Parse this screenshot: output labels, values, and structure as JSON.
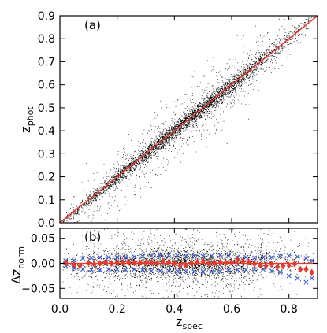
{
  "chart_data": [
    {
      "type": "scatter",
      "panel_label": "(a)",
      "xlabel_main": "z",
      "xlabel_sub": "spec",
      "ylabel_main": "z",
      "ylabel_sub": "phot",
      "xlim": [
        0.0,
        0.9
      ],
      "ylim": [
        0.0,
        0.9
      ],
      "x_ticks": [
        0.0,
        0.2,
        0.4,
        0.6,
        0.8
      ],
      "y_ticks": [
        0.0,
        0.1,
        0.2,
        0.3,
        0.4,
        0.5,
        0.6,
        0.7,
        0.8,
        0.9
      ],
      "y_tick_labels": [
        "0.0",
        "0.1",
        "0.2",
        "0.3",
        "0.4",
        "0.5",
        "0.6",
        "0.7",
        "0.8",
        "0.9"
      ],
      "reference_line": {
        "x": [
          0.0,
          0.9
        ],
        "y": [
          0.0,
          0.9
        ],
        "color": "#e8392a"
      },
      "point_color": "#000000",
      "density_profile": {
        "x": [
          0.03,
          0.1,
          0.2,
          0.3,
          0.4,
          0.5,
          0.6,
          0.7,
          0.8,
          0.88
        ],
        "relative_density": [
          0.15,
          0.35,
          0.6,
          0.8,
          1.0,
          1.0,
          0.85,
          0.45,
          0.2,
          0.08
        ]
      }
    },
    {
      "type": "scatter",
      "panel_label": "(b)",
      "xlabel_main": "z",
      "xlabel_sub": "spec",
      "ylabel_main": "Δz",
      "ylabel_sub": "norm",
      "xlim": [
        0.0,
        0.9
      ],
      "ylim": [
        -0.07,
        0.07
      ],
      "x_ticks": [
        0.0,
        0.2,
        0.4,
        0.6,
        0.8
      ],
      "x_tick_labels": [
        "0.0",
        "0.2",
        "0.4",
        "0.6",
        "0.8"
      ],
      "y_ticks": [
        -0.05,
        0.0,
        0.05
      ],
      "y_tick_labels": [
        "−0.05",
        "0.00",
        "0.05"
      ],
      "point_color": "#000000",
      "series": [
        {
          "marker": "diamond",
          "color": "#e8392a",
          "x": [
            0.02,
            0.05,
            0.07,
            0.1,
            0.12,
            0.14,
            0.16,
            0.18,
            0.2,
            0.22,
            0.24,
            0.26,
            0.28,
            0.3,
            0.32,
            0.34,
            0.36,
            0.38,
            0.4,
            0.42,
            0.44,
            0.46,
            0.48,
            0.5,
            0.52,
            0.54,
            0.56,
            0.58,
            0.6,
            0.62,
            0.64,
            0.66,
            0.68,
            0.7,
            0.72,
            0.74,
            0.76,
            0.78,
            0.8,
            0.82,
            0.84,
            0.86,
            0.88
          ],
          "y": [
            0.001,
            -0.003,
            -0.005,
            0.001,
            -0.002,
            0.0,
            0.002,
            0.0,
            0.002,
            0.002,
            0.002,
            0.001,
            0.001,
            0.001,
            0.002,
            0.0,
            0.004,
            0.002,
            0.0,
            -0.005,
            -0.004,
            0.0,
            0.002,
            0.004,
            0.0,
            0.001,
            0.002,
            0.001,
            0.002,
            0.007,
            0.004,
            0.003,
            -0.001,
            -0.004,
            -0.005,
            -0.002,
            -0.007,
            -0.005,
            -0.004,
            -0.001,
            -0.012,
            -0.012,
            -0.018
          ]
        },
        {
          "marker": "x",
          "color": "#3a5bd6",
          "x": [
            0.02,
            0.05,
            0.08,
            0.11,
            0.14,
            0.17,
            0.2,
            0.23,
            0.26,
            0.29,
            0.32,
            0.35,
            0.38,
            0.41,
            0.44,
            0.47,
            0.5,
            0.53,
            0.56,
            0.59,
            0.62,
            0.65,
            0.68,
            0.71,
            0.74,
            0.77,
            0.8,
            0.83,
            0.86,
            0.88
          ],
          "y_upper": [
            0.005,
            0.006,
            0.01,
            0.011,
            0.012,
            0.012,
            0.012,
            0.012,
            0.013,
            0.014,
            0.015,
            0.016,
            0.016,
            0.015,
            0.014,
            0.014,
            0.014,
            0.015,
            0.016,
            0.015,
            0.012,
            0.012,
            0.011,
            0.012,
            0.012,
            0.014,
            0.015,
            0.013,
            0.01,
            0.005
          ],
          "y_lower": [
            -0.005,
            -0.01,
            -0.012,
            -0.013,
            -0.013,
            -0.012,
            -0.012,
            -0.013,
            -0.012,
            -0.013,
            -0.015,
            -0.015,
            -0.015,
            -0.016,
            -0.016,
            -0.017,
            -0.017,
            -0.017,
            -0.016,
            -0.014,
            -0.013,
            -0.013,
            -0.012,
            -0.012,
            -0.015,
            -0.018,
            -0.025,
            -0.03,
            -0.038,
            -0.03
          ]
        }
      ],
      "reference_line": {
        "y": 0.0,
        "color": "#e8392a"
      }
    }
  ]
}
